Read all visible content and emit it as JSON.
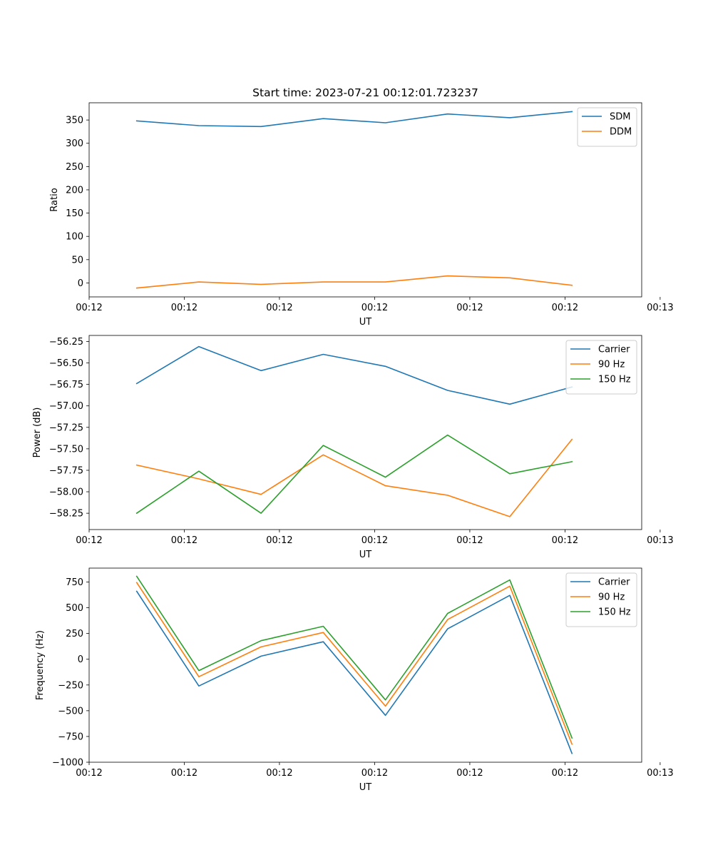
{
  "figure": {
    "title": "Start time: 2023-07-21 00:12:01.723237"
  },
  "chart_data": [
    {
      "type": "line",
      "title": "Start time: 2023-07-21 00:12:01.723237",
      "xlabel": "UT",
      "ylabel": "Ratio",
      "xlim": [
        0,
        9.5
      ],
      "ylim": [
        -30,
        387
      ],
      "x_tick_values": [
        0,
        1.636,
        3.272,
        4.909,
        6.545,
        8.181,
        9.817
      ],
      "x_tick_labels": [
        "00:12",
        "00:12",
        "00:12",
        "00:12",
        "00:12",
        "00:12",
        "00:13"
      ],
      "y_ticks": [
        0,
        50,
        100,
        150,
        200,
        250,
        300,
        350
      ],
      "y_tick_labels": [
        "0",
        "50",
        "100",
        "150",
        "200",
        "250",
        "300",
        "350"
      ],
      "x": [
        0.818,
        1.887,
        2.956,
        4.025,
        5.094,
        6.163,
        7.232,
        8.301
      ],
      "series": [
        {
          "name": "SDM",
          "color": "#1f77b4",
          "values": [
            348,
            338,
            336,
            353,
            344,
            363,
            355,
            368
          ]
        },
        {
          "name": "DDM",
          "color": "#ff7f0e",
          "values": [
            -11,
            2,
            -3,
            2,
            2,
            15,
            11,
            -5
          ]
        }
      ],
      "legend": "top-right"
    },
    {
      "type": "line",
      "title": "",
      "xlabel": "UT",
      "ylabel": "Power (dB)",
      "xlim": [
        0,
        9.5
      ],
      "ylim": [
        -58.44,
        -56.18
      ],
      "x_tick_values": [
        0,
        1.636,
        3.272,
        4.909,
        6.545,
        8.181,
        9.817
      ],
      "x_tick_labels": [
        "00:12",
        "00:12",
        "00:12",
        "00:12",
        "00:12",
        "00:12",
        "00:13"
      ],
      "y_ticks": [
        -58.25,
        -58.0,
        -57.75,
        -57.5,
        -57.25,
        -57.0,
        -56.75,
        -56.5,
        -56.25
      ],
      "y_tick_labels": [
        "−58.25",
        "−58.00",
        "−57.75",
        "−57.50",
        "−57.25",
        "−57.00",
        "−56.75",
        "−56.50",
        "−56.25"
      ],
      "x": [
        0.818,
        1.887,
        2.956,
        4.025,
        5.094,
        6.163,
        7.232,
        8.301
      ],
      "series": [
        {
          "name": "Carrier",
          "color": "#1f77b4",
          "values": [
            -56.74,
            -56.31,
            -56.59,
            -56.4,
            -56.54,
            -56.82,
            -56.98,
            -56.78
          ]
        },
        {
          "name": "90 Hz",
          "color": "#ff7f0e",
          "values": [
            -57.69,
            -57.85,
            -58.03,
            -57.57,
            -57.93,
            -58.04,
            -58.29,
            -57.39
          ]
        },
        {
          "name": "150 Hz",
          "color": "#2ca02c",
          "values": [
            -58.25,
            -57.76,
            -58.25,
            -57.46,
            -57.83,
            -57.34,
            -57.79,
            -57.65
          ]
        }
      ],
      "legend": "top-right"
    },
    {
      "type": "line",
      "title": "",
      "xlabel": "UT",
      "ylabel": "Frequency (Hz)",
      "xlim": [
        0,
        9.5
      ],
      "ylim": [
        -1000,
        885
      ],
      "x_tick_values": [
        0,
        1.636,
        3.272,
        4.909,
        6.545,
        8.181,
        9.817
      ],
      "x_tick_labels": [
        "00:12",
        "00:12",
        "00:12",
        "00:12",
        "00:12",
        "00:12",
        "00:13"
      ],
      "y_ticks": [
        -1000,
        -750,
        -500,
        -250,
        0,
        250,
        500,
        750
      ],
      "y_tick_labels": [
        "−1000",
        "−750",
        "−500",
        "−250",
        "0",
        "250",
        "500",
        "750"
      ],
      "x": [
        0.818,
        1.887,
        2.956,
        4.025,
        5.094,
        6.163,
        7.232,
        8.301
      ],
      "series": [
        {
          "name": "Carrier",
          "color": "#1f77b4",
          "values": [
            660,
            -260,
            30,
            170,
            -545,
            295,
            620,
            -915
          ]
        },
        {
          "name": "90 Hz",
          "color": "#ff7f0e",
          "values": [
            745,
            -170,
            120,
            260,
            -455,
            385,
            710,
            -825
          ]
        },
        {
          "name": "150 Hz",
          "color": "#2ca02c",
          "values": [
            805,
            -110,
            180,
            320,
            -395,
            445,
            770,
            -765
          ]
        }
      ],
      "legend": "top-right"
    }
  ]
}
